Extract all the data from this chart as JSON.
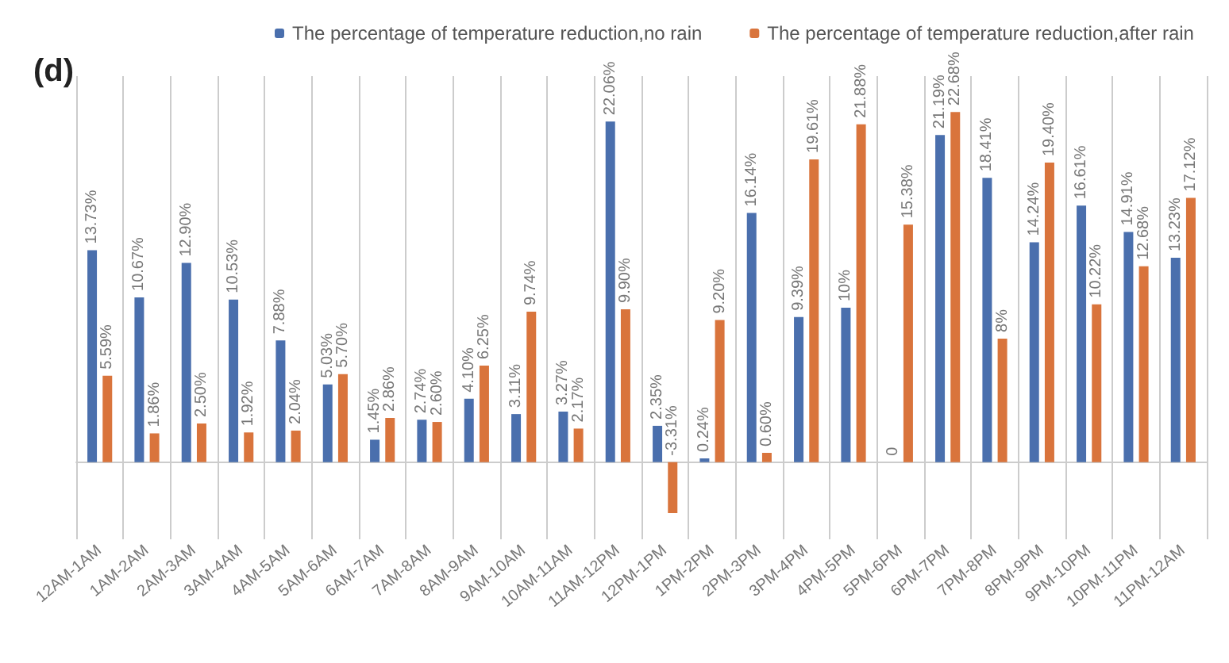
{
  "chart_data": {
    "type": "bar",
    "title": "(d)",
    "legend": "top",
    "grid": "x",
    "categories": [
      "12AM-1AM",
      "1AM-2AM",
      "2AM-3AM",
      "3AM-4AM",
      "4AM-5AM",
      "5AM-6AM",
      "6AM-7AM",
      "7AM-8AM",
      "8AM-9AM",
      "9AM-10AM",
      "10AM-11AM",
      "11AM-12PM",
      "12PM-1PM",
      "1PM-2PM",
      "2PM-3PM",
      "3PM-4PM",
      "4PM-5PM",
      "5PM-6PM",
      "6PM-7PM",
      "7PM-8PM",
      "8PM-9PM",
      "9PM-10PM",
      "10PM-11PM",
      "11PM-12AM"
    ],
    "series": [
      {
        "name": "The percentage of temperature reduction,no rain",
        "color": "#4a6fad",
        "values": [
          13.73,
          10.67,
          12.9,
          10.53,
          7.88,
          5.03,
          1.45,
          2.74,
          4.1,
          3.11,
          3.27,
          22.06,
          2.35,
          0.24,
          16.14,
          9.39,
          10,
          0,
          21.19,
          18.41,
          14.24,
          16.61,
          14.91,
          13.23
        ],
        "value_labels": [
          "13.73%",
          "10.67%",
          "12.90%",
          "10.53%",
          "7.88%",
          "5.03%",
          "1.45%",
          "2.74%",
          "4.10%",
          "3.11%",
          "3.27%",
          "22.06%",
          "2.35%",
          "0.24%",
          "16.14%",
          "9.39%",
          "10%",
          "0",
          "21.19%",
          "18.41%",
          "14.24%",
          "16.61%",
          "14.91%",
          "13.23%"
        ]
      },
      {
        "name": "The percentage of temperature reduction,after rain",
        "color": "#d9743c",
        "values": [
          5.59,
          1.86,
          2.5,
          1.92,
          2.04,
          5.7,
          2.86,
          2.6,
          6.25,
          9.74,
          2.17,
          9.9,
          -3.31,
          9.2,
          0.6,
          19.61,
          21.88,
          15.38,
          22.68,
          8,
          19.4,
          10.22,
          12.68,
          17.12
        ],
        "value_labels": [
          "5.59%",
          "1.86%",
          "2.50%",
          "1.92%",
          "2.04%",
          "5.70%",
          "2.86%",
          "2.60%",
          "6.25%",
          "9.74%",
          "2.17%",
          "9.90%",
          "-3.31%",
          "9.20%",
          "0.60%",
          "19.61%",
          "21.88%",
          "15.38%",
          "22.68%",
          "8%",
          "19.40%",
          "10.22%",
          "12.68%",
          "17.12%"
        ]
      }
    ]
  }
}
